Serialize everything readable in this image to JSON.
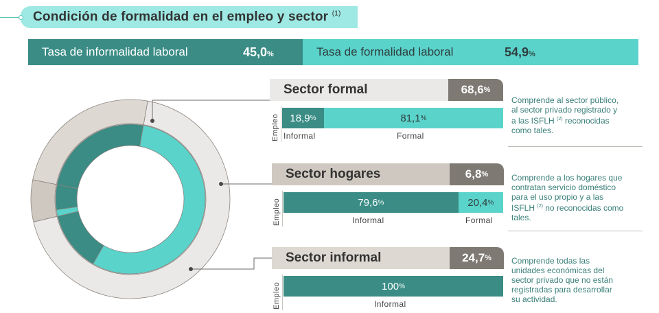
{
  "title": {
    "text": "Condición de formalidad en el empleo y sector",
    "note": "(1)"
  },
  "rates": {
    "informal": {
      "label": "Tasa de informalidad laboral",
      "value": "45,0",
      "unit": "%"
    },
    "formal": {
      "label": "Tasa de formalidad laboral",
      "value": "54,9",
      "unit": "%"
    }
  },
  "employment_label": "Empleo",
  "sectors": [
    {
      "name": "Sector formal",
      "pct": "68,6",
      "unit": "%",
      "informal": {
        "value": "18,9",
        "label": "Informal"
      },
      "formal": {
        "value": "81,1",
        "label": "Formal"
      },
      "desc_lines": [
        "Comprende al sector público,",
        "al sector privado registrado y",
        "a las ISFLH",
        " reconocidas",
        "como tales."
      ],
      "desc_note": "(2)"
    },
    {
      "name": "Sector hogares",
      "pct": "6,8",
      "unit": "%",
      "informal": {
        "value": "79,6",
        "label": "Informal"
      },
      "formal": {
        "value": "20,4",
        "label": "Formal"
      },
      "desc_lines": [
        "Comprende a los hogares que",
        "contratan servicio doméstico",
        "para el uso propio y a las",
        "ISFLH",
        " no reconocidas como",
        "tales."
      ],
      "desc_note": "(2)"
    },
    {
      "name": "Sector informal",
      "pct": "24,7",
      "unit": "%",
      "informal": {
        "value": "100",
        "label": "Informal"
      },
      "desc_lines": [
        "Comprende todas las",
        "unidades económicas del",
        "sector privado que no están",
        "registradas para desarrollar",
        "su actividad."
      ]
    }
  ],
  "colors": {
    "informal": "#3a8c85",
    "formal": "#5ad3cb",
    "sector_formal": "#ebe9e7",
    "sector_hogares": "#cfc8c0",
    "sector_informal": "#ddd8d2",
    "pct_box": "#7e7973"
  },
  "chart_data": {
    "type": "pie",
    "title": "Condición de formalidad en el empleo y sector",
    "outer_ring": {
      "categories": [
        "Sector formal",
        "Sector hogares",
        "Sector informal"
      ],
      "values": [
        68.6,
        6.8,
        24.7
      ]
    },
    "inner_ring": {
      "categories": [
        "Sector formal - Formal",
        "Sector formal - Informal",
        "Sector hogares - Formal",
        "Sector hogares - Informal",
        "Sector informal - Informal"
      ],
      "values": [
        55.6,
        13.0,
        1.4,
        5.4,
        24.7
      ]
    },
    "bars": [
      {
        "sector": "Sector formal",
        "series": [
          {
            "name": "Informal",
            "values": [
              18.9
            ]
          },
          {
            "name": "Formal",
            "values": [
              81.1
            ]
          }
        ]
      },
      {
        "sector": "Sector hogares",
        "series": [
          {
            "name": "Informal",
            "values": [
              79.6
            ]
          },
          {
            "name": "Formal",
            "values": [
              20.4
            ]
          }
        ]
      },
      {
        "sector": "Sector informal",
        "series": [
          {
            "name": "Informal",
            "values": [
              100
            ]
          }
        ]
      }
    ]
  }
}
